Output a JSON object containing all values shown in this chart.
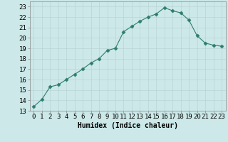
{
  "x": [
    0,
    1,
    2,
    3,
    4,
    5,
    6,
    7,
    8,
    9,
    10,
    11,
    12,
    13,
    14,
    15,
    16,
    17,
    18,
    19,
    20,
    21,
    22,
    23
  ],
  "y": [
    13.4,
    14.1,
    15.3,
    15.5,
    16.0,
    16.5,
    17.0,
    17.6,
    18.0,
    18.8,
    19.0,
    20.6,
    21.1,
    21.6,
    22.0,
    22.3,
    22.9,
    22.6,
    22.4,
    21.7,
    20.2,
    19.5,
    19.3,
    19.2
  ],
  "line_color": "#2e7d6e",
  "marker": "D",
  "marker_size": 2.5,
  "bg_color": "#cce8e8",
  "grid_color": "#b8d4d4",
  "xlabel": "Humidex (Indice chaleur)",
  "xlim": [
    -0.5,
    23.5
  ],
  "ylim": [
    13,
    23.5
  ],
  "yticks": [
    13,
    14,
    15,
    16,
    17,
    18,
    19,
    20,
    21,
    22,
    23
  ],
  "xticks": [
    0,
    1,
    2,
    3,
    4,
    5,
    6,
    7,
    8,
    9,
    10,
    11,
    12,
    13,
    14,
    15,
    16,
    17,
    18,
    19,
    20,
    21,
    22,
    23
  ],
  "label_fontsize": 7,
  "tick_fontsize": 6.5
}
